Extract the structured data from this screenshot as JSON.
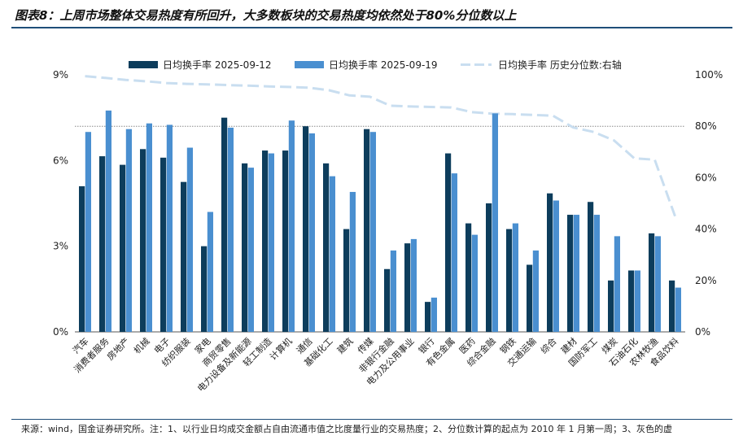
{
  "title": "图表8：上周市场整体交易热度有所回升，大多数板块的交易热度均依然处于80%分位数以上",
  "source": "来源：wind，国金证券研究所。注：1、以行业日均成交金额占自由流通市值之比度量行业的交易热度；2、分位数计算的起点为 2010 年 1 月第一周；3、灰色的虚",
  "colors": {
    "series1": "#0d3d5c",
    "series2": "#4a8fd0",
    "series3": "#c9def0",
    "refline": "#888888"
  },
  "chart_data": {
    "type": "bar",
    "categories": [
      "汽车",
      "消费者服务",
      "房地产",
      "机械",
      "电子",
      "纺织服装",
      "家电",
      "商贸零售",
      "电力设备及新能源",
      "轻工制造",
      "计算机",
      "通信",
      "基础化工",
      "建筑",
      "传媒",
      "非银行金融",
      "电力及公用事业",
      "银行",
      "有色金属",
      "医药",
      "综合金融",
      "钢铁",
      "交通运输",
      "综合",
      "建材",
      "国防军工",
      "煤炭",
      "石油石化",
      "农林牧渔",
      "食品饮料"
    ],
    "series": [
      {
        "name": "日均换手率 2025-09-12",
        "axis": "left",
        "values": [
          5.1,
          6.15,
          5.85,
          6.4,
          6.1,
          5.25,
          3.0,
          7.5,
          5.9,
          6.35,
          6.35,
          7.2,
          5.9,
          3.6,
          7.1,
          2.2,
          3.1,
          1.05,
          6.25,
          3.8,
          4.5,
          3.6,
          2.35,
          4.85,
          4.1,
          4.55,
          1.8,
          2.15,
          3.45,
          1.8
        ]
      },
      {
        "name": "日均换手率 2025-09-19",
        "axis": "left",
        "values": [
          7.0,
          7.75,
          7.1,
          7.3,
          7.25,
          6.45,
          4.2,
          7.15,
          5.75,
          6.25,
          7.4,
          6.95,
          5.45,
          4.9,
          7.0,
          2.85,
          3.25,
          1.2,
          5.55,
          3.4,
          7.65,
          3.8,
          2.85,
          4.6,
          4.1,
          4.1,
          3.35,
          2.15,
          3.35,
          1.55
        ]
      },
      {
        "name": "日均换手率 历史分位数:右轴",
        "axis": "right",
        "style": "dashed-line",
        "values": [
          99.5,
          98.8,
          98.0,
          97.5,
          96.8,
          96.5,
          96.3,
          96.0,
          95.8,
          95.5,
          95.3,
          95.0,
          94.0,
          92.0,
          91.5,
          88.0,
          87.7,
          87.5,
          87.3,
          85.5,
          84.9,
          84.7,
          84.4,
          84.1,
          79.5,
          77.8,
          74.5,
          67.5,
          67.0,
          45.0
        ]
      }
    ],
    "y_left": {
      "min": 0,
      "max": 9,
      "ticks": [
        "0%",
        "3%",
        "6%",
        "9%"
      ],
      "tick_values": [
        0,
        3,
        6,
        9
      ]
    },
    "y_right": {
      "min": 0,
      "max": 100,
      "ticks": [
        "0%",
        "20%",
        "40%",
        "60%",
        "80%",
        "100%"
      ],
      "tick_values": [
        0,
        20,
        40,
        60,
        80,
        100
      ]
    },
    "reference_line": {
      "axis": "right",
      "value": 80,
      "style": "dotted"
    },
    "legend_position": "top",
    "grid": false
  }
}
